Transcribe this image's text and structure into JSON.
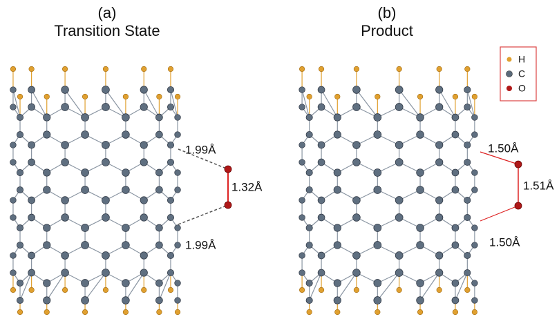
{
  "panels": [
    {
      "label": "(a)",
      "title": "Transition State",
      "distances": [
        "1.99Å",
        "1.32Å",
        "1.99Å"
      ]
    },
    {
      "label": "(b)",
      "title": "Product",
      "distances": [
        "1.50Å",
        "1.51Å",
        "1.50Å"
      ]
    }
  ],
  "legend": [
    {
      "label": "H"
    },
    {
      "label": "C"
    },
    {
      "label": "O"
    }
  ]
}
